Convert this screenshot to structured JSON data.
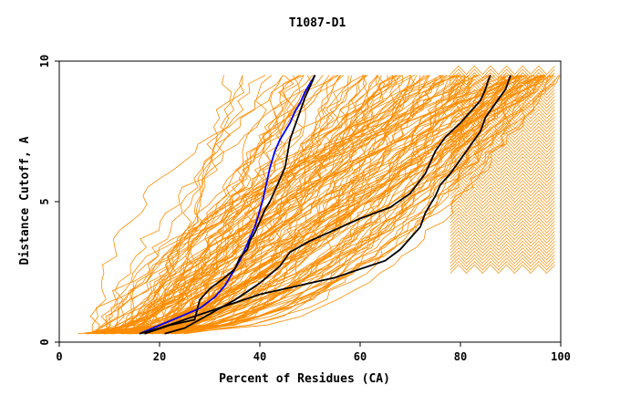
{
  "chart_data": {
    "type": "line",
    "title": "T1087-D1",
    "xlabel": "Percent of Residues (CA)",
    "ylabel": "Distance Cutoff, A",
    "xlim": [
      0,
      100
    ],
    "ylim": [
      0,
      10
    ],
    "xticks": [
      "0",
      "20",
      "40",
      "60",
      "80",
      "100"
    ],
    "yticks": [
      "0",
      "5",
      "10"
    ],
    "grid": false,
    "legend": "none",
    "colors": {
      "background_curves": "#ff8c00",
      "highlight_blue": "#0000ff",
      "highlight_black": "#000000",
      "axes": "#000000"
    },
    "series": [
      {
        "color": "#0000ff",
        "x": [
          16,
          20,
          24,
          28,
          31,
          33,
          34,
          35,
          36,
          36.5,
          37,
          37.5,
          38,
          38.5,
          39,
          39.5,
          40,
          40.5,
          41,
          41.5,
          42,
          42.5,
          43,
          44,
          45,
          46,
          47,
          48,
          49,
          50,
          51
        ],
        "y": [
          0.3,
          0.6,
          0.9,
          1.2,
          1.6,
          2.0,
          2.3,
          2.6,
          2.9,
          3.1,
          3.3,
          3.5,
          3.7,
          3.9,
          4.1,
          4.4,
          4.7,
          5.0,
          5.4,
          5.8,
          6.2,
          6.5,
          6.8,
          7.2,
          7.5,
          7.8,
          8.2,
          8.5,
          8.9,
          9.2,
          9.5
        ]
      },
      {
        "color": "#000000",
        "x": [
          17,
          22,
          27,
          28,
          30,
          33,
          35,
          36,
          37.5,
          38,
          39,
          40,
          41,
          42,
          43,
          44,
          45,
          45.5,
          46,
          47,
          48,
          49,
          50,
          51
        ],
        "y": [
          0.3,
          0.6,
          0.8,
          1.5,
          1.9,
          2.3,
          2.6,
          3.0,
          3.3,
          3.6,
          3.9,
          4.3,
          4.7,
          5.0,
          5.4,
          5.8,
          6.2,
          6.7,
          7.2,
          7.7,
          8.2,
          8.7,
          9.1,
          9.5
        ]
      },
      {
        "color": "#000000",
        "x": [
          21,
          25,
          30,
          35,
          40,
          44,
          46,
          50,
          55,
          60,
          66,
          70,
          73,
          74,
          75,
          77,
          80,
          82,
          84,
          85,
          85.5,
          86
        ],
        "y": [
          0.3,
          0.5,
          1.0,
          1.5,
          2.1,
          2.7,
          3.2,
          3.6,
          4.0,
          4.4,
          4.8,
          5.3,
          6.0,
          6.4,
          6.8,
          7.3,
          7.8,
          8.2,
          8.6,
          9.0,
          9.3,
          9.5
        ]
      },
      {
        "color": "#000000",
        "x": [
          16,
          20,
          25,
          30,
          35,
          40,
          45,
          50,
          55,
          60,
          65,
          68,
          70,
          72,
          73,
          74,
          75,
          76,
          78,
          80,
          82,
          84,
          85,
          87,
          89,
          90
        ],
        "y": [
          0.3,
          0.5,
          0.8,
          1.1,
          1.4,
          1.7,
          1.9,
          2.1,
          2.3,
          2.6,
          2.9,
          3.3,
          3.7,
          4.1,
          4.6,
          4.9,
          5.2,
          5.6,
          6.0,
          6.5,
          7.0,
          7.5,
          8.0,
          8.5,
          9.0,
          9.5
        ]
      }
    ]
  }
}
